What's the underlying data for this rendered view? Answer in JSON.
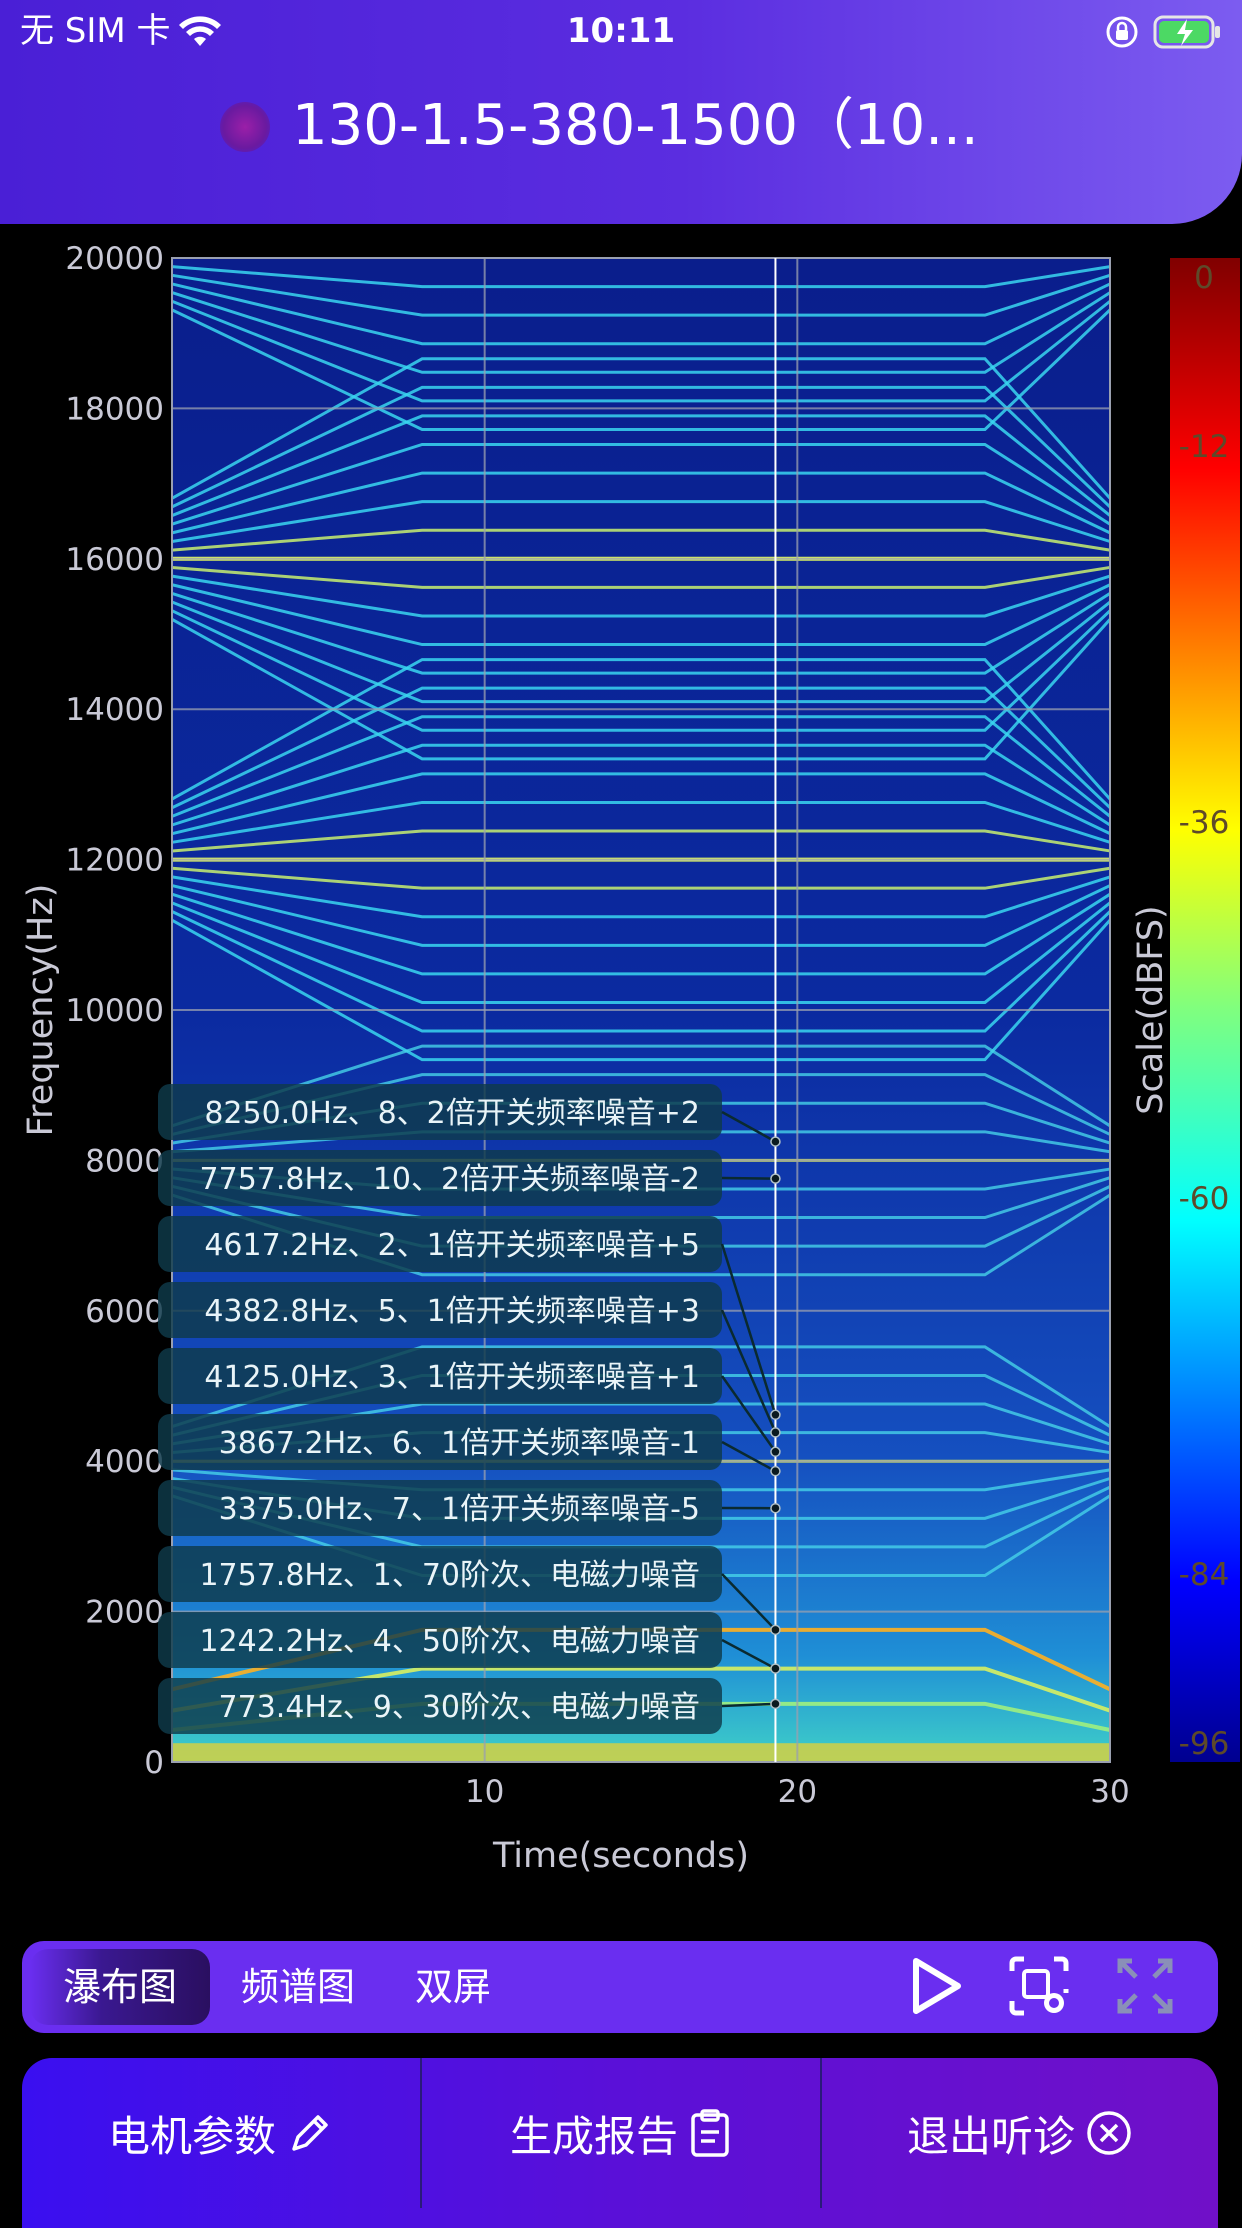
{
  "status_bar": {
    "carrier": "无 SIM 卡",
    "time": "10:11"
  },
  "header": {
    "title": "130-1.5-380-1500（10..."
  },
  "chart_data": {
    "type": "heatmap",
    "xlabel": "Time(seconds)",
    "ylabel": "Frequency(Hz)",
    "colorbar_label": "Scale(dBFS)",
    "xlim": [
      0,
      30
    ],
    "ylim": [
      0,
      20000
    ],
    "x_ticks": [
      10,
      20,
      30
    ],
    "y_ticks": [
      0,
      2000,
      4000,
      6000,
      8000,
      10000,
      12000,
      14000,
      16000,
      18000,
      20000
    ],
    "colorbar_range": [
      -96,
      0
    ],
    "colorbar_ticks": [
      0,
      -12,
      -36,
      -60,
      -84,
      -96
    ],
    "cursor_time": 19.3,
    "grid": true,
    "annotations": [
      {
        "label": "8250.0Hz、8、2倍开关频率噪音+2",
        "freq": 8250.0
      },
      {
        "label": "7757.8Hz、10、2倍开关频率噪音-2",
        "freq": 7757.8
      },
      {
        "label": "4617.2Hz、2、1倍开关频率噪音+5",
        "freq": 4617.2
      },
      {
        "label": "4382.8Hz、5、1倍开关频率噪音+3",
        "freq": 4382.8
      },
      {
        "label": "4125.0Hz、3、1倍开关频率噪音+1",
        "freq": 4125.0
      },
      {
        "label": "3867.2Hz、6、1倍开关频率噪音-1",
        "freq": 3867.2
      },
      {
        "label": "3375.0Hz、7、1倍开关频率噪音-5",
        "freq": 3375.0
      },
      {
        "label": "1757.8Hz、1、70阶次、电磁力噪音",
        "freq": 1757.8
      },
      {
        "label": "1242.2Hz、4、50阶次、电磁力噪音",
        "freq": 1242.2
      },
      {
        "label": "773.4Hz、9、30阶次、电磁力噪音",
        "freq": 773.4
      }
    ]
  },
  "toolbar": {
    "tabs": [
      "瀑布图",
      "频谱图",
      "双屏"
    ],
    "active_tab": "瀑布图"
  },
  "bottom": {
    "motor_params": "电机参数",
    "generate_report": "生成报告",
    "exit": "退出听诊"
  },
  "icons": [
    "wifi-icon",
    "lock-rotation-icon",
    "battery-charging-icon",
    "play-icon",
    "screenshot-icon",
    "fullscreen-icon",
    "pencil-icon",
    "clipboard-icon",
    "close-circle-icon"
  ]
}
